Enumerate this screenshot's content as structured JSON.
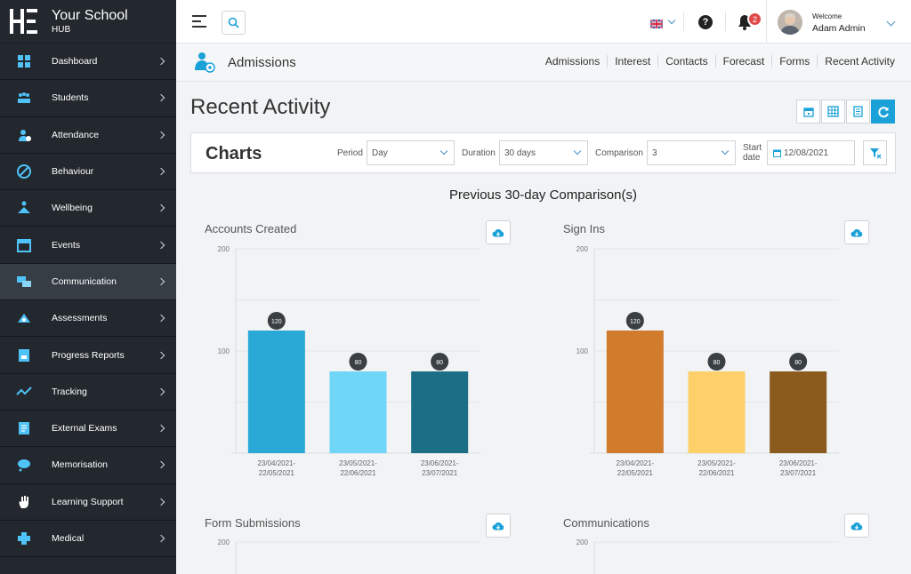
{
  "brand": {
    "title": "Your School",
    "subtitle": "HUB"
  },
  "sidebar": {
    "items": [
      {
        "label": "Dashboard",
        "icon": "dashboard-icon"
      },
      {
        "label": "Students",
        "icon": "students-icon"
      },
      {
        "label": "Attendance",
        "icon": "attendance-icon"
      },
      {
        "label": "Behaviour",
        "icon": "behaviour-icon"
      },
      {
        "label": "Wellbeing",
        "icon": "wellbeing-icon"
      },
      {
        "label": "Events",
        "icon": "calendar-icon"
      },
      {
        "label": "Communication",
        "icon": "communication-icon",
        "active": true
      },
      {
        "label": "Assessments",
        "icon": "assessments-icon"
      },
      {
        "label": "Progress Reports",
        "icon": "report-icon"
      },
      {
        "label": "Tracking",
        "icon": "tracking-icon"
      },
      {
        "label": "External Exams",
        "icon": "exams-icon"
      },
      {
        "label": "Memorisation",
        "icon": "memorisation-icon"
      },
      {
        "label": "Learning Support",
        "icon": "hand-icon"
      },
      {
        "label": "Medical",
        "icon": "medical-cross-icon"
      }
    ]
  },
  "topbar": {
    "notifications": "2",
    "welcome": "Welcome",
    "user_name": "Adam Admin"
  },
  "page": {
    "title": "Admissions",
    "subnav": [
      "Admissions",
      "Interest",
      "Contacts",
      "Forecast",
      "Forms",
      "Recent Activity"
    ],
    "heading": "Recent Activity"
  },
  "filters": {
    "section": "Charts",
    "period_label": "Period",
    "period_value": "Day",
    "duration_label": "Duration",
    "duration_value": "30 days",
    "comparison_label": "Comparison",
    "comparison_value": "3",
    "start_label_1": "Start",
    "start_label_2": "date",
    "start_value": "12/08/2021"
  },
  "comparison_title": "Previous 30-day Comparison(s)",
  "chart_data": [
    {
      "type": "bar",
      "title": "Accounts Created",
      "categories": [
        "23/04/2021-22/05/2021",
        "23/05/2021-22/06/2021",
        "23/06/2021-23/07/2021"
      ],
      "category_lines": [
        [
          "23/04/2021-",
          "22/05/2021"
        ],
        [
          "23/05/2021-",
          "22/06/2021"
        ],
        [
          "23/06/2021-",
          "23/07/2021"
        ]
      ],
      "values": [
        120,
        80,
        80
      ],
      "colors": [
        "#2aa8d6",
        "#6fd6f7",
        "#1b6e85"
      ],
      "ylim": [
        0,
        200
      ],
      "yticks": [
        100,
        200
      ]
    },
    {
      "type": "bar",
      "title": "Sign Ins",
      "categories": [
        "23/04/2021-22/05/2021",
        "23/05/2021-22/06/2021",
        "23/06/2021-23/07/2021"
      ],
      "category_lines": [
        [
          "23/04/2021-",
          "22/05/2021"
        ],
        [
          "23/05/2021-",
          "22/06/2021"
        ],
        [
          "23/06/2021-",
          "23/07/2021"
        ]
      ],
      "values": [
        120,
        80,
        80
      ],
      "colors": [
        "#d17b2c",
        "#fdd06a",
        "#8a5b1c"
      ],
      "ylim": [
        0,
        200
      ],
      "yticks": [
        100,
        200
      ]
    },
    {
      "type": "bar",
      "title": "Form Submissions",
      "ylim": [
        0,
        200
      ],
      "yticks": [
        200
      ]
    },
    {
      "type": "bar",
      "title": "Communications",
      "ylim": [
        0,
        200
      ],
      "yticks": [
        200
      ]
    }
  ]
}
